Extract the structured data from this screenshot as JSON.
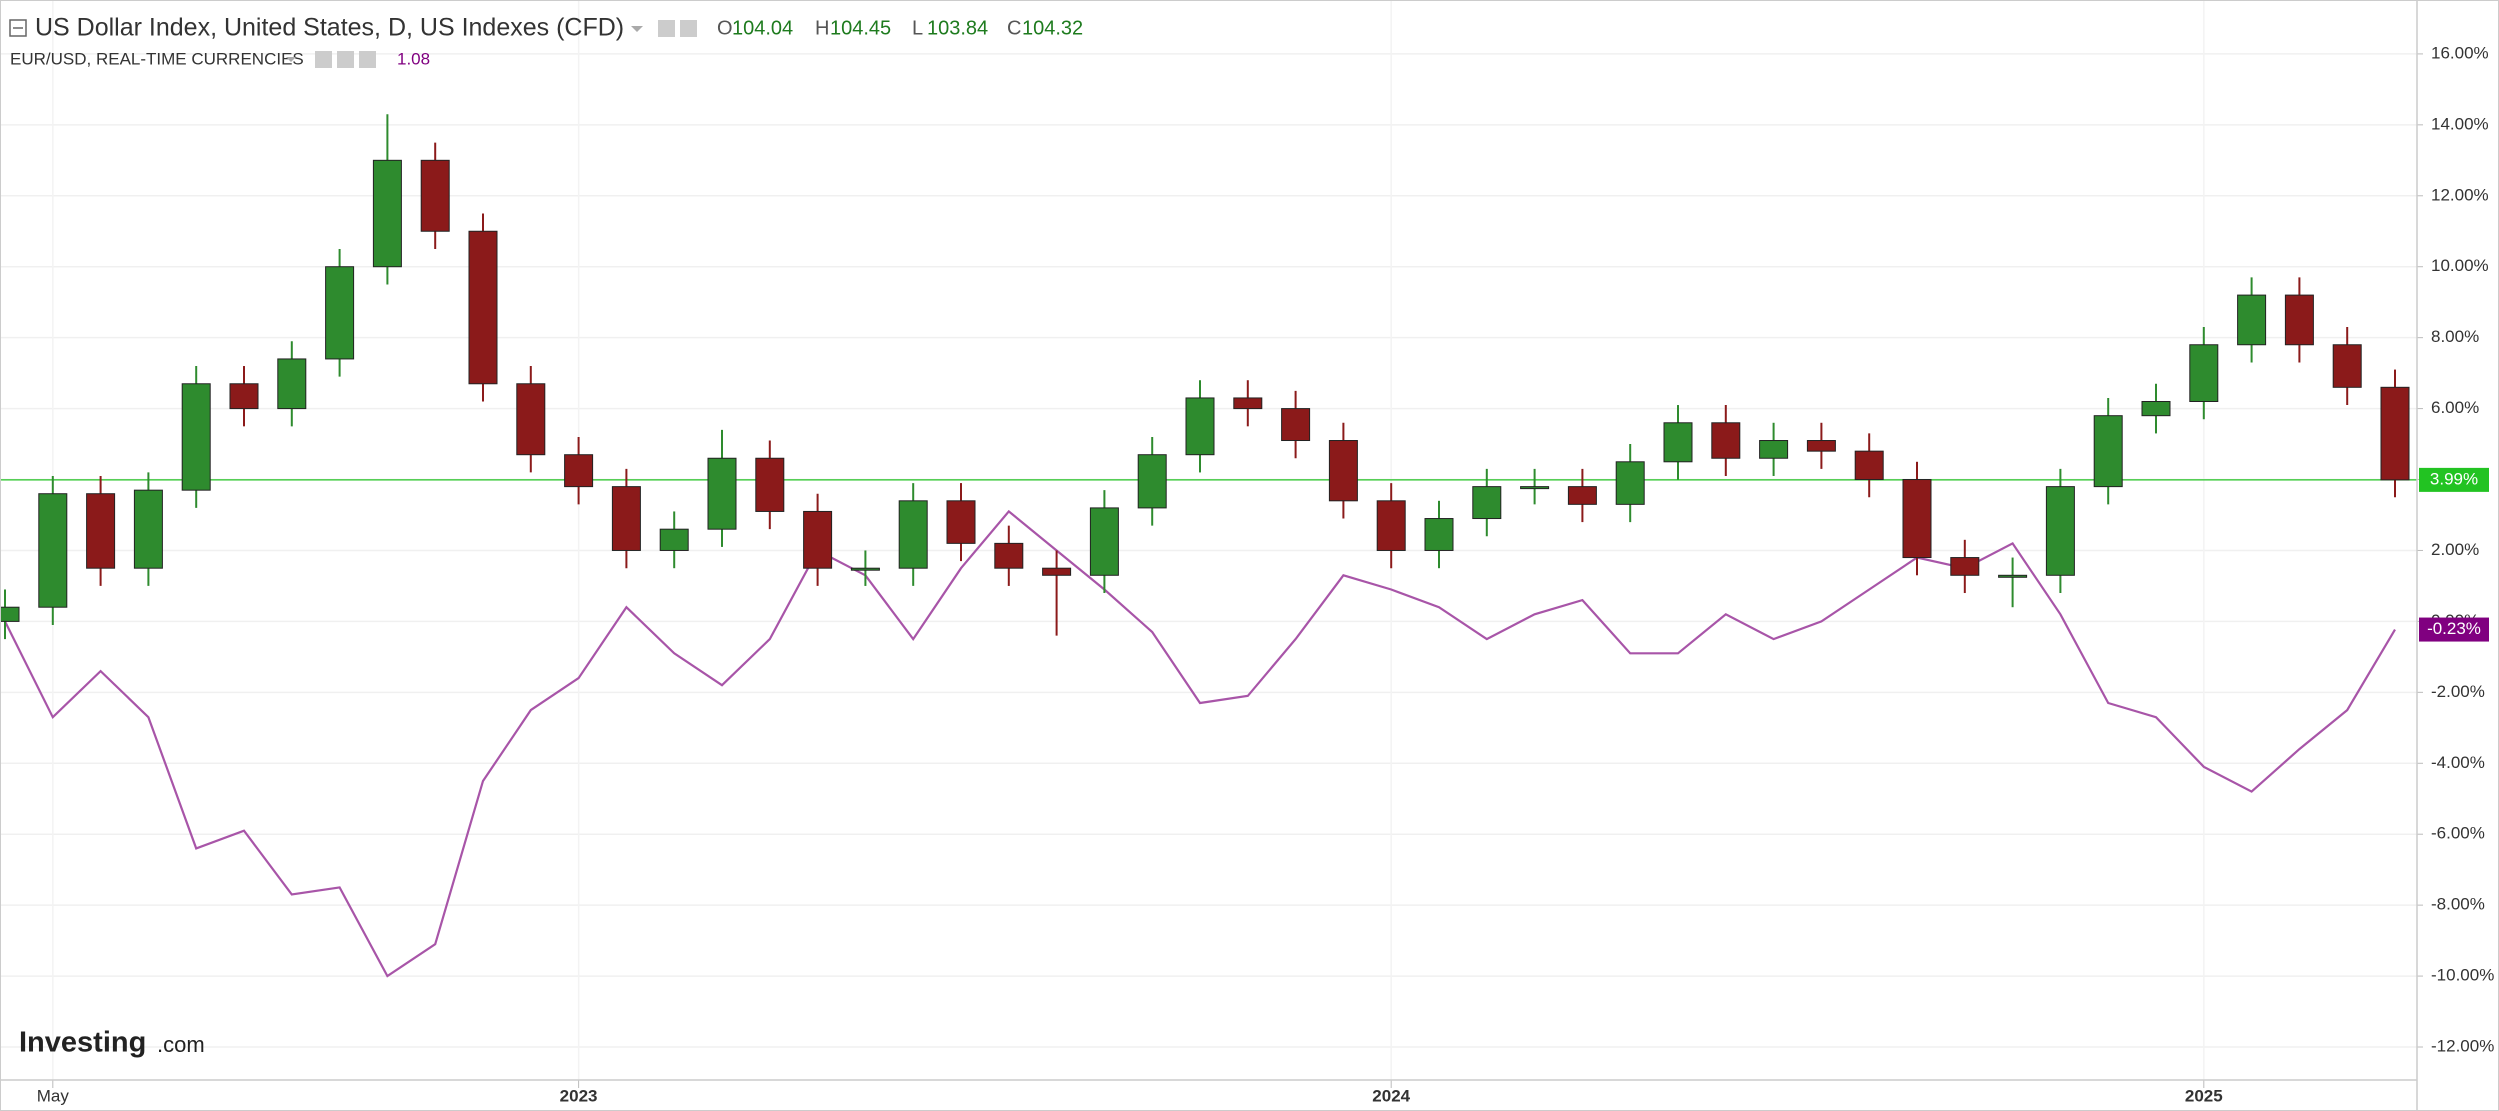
{
  "chart_data": {
    "type": "candlestick",
    "title": "US Dollar Index, United States, D, US Indexes (CFD)",
    "ohlc": [
      {
        "label": "O",
        "value": 104.04
      },
      {
        "label": "H",
        "value": 104.45
      },
      {
        "label": "L",
        "value": 103.84
      },
      {
        "label": "C",
        "value": 104.32
      }
    ],
    "categories": [
      null,
      "May",
      null,
      null,
      null,
      null,
      null,
      null,
      null,
      null,
      null,
      null,
      "2023",
      null,
      null,
      null,
      null,
      null,
      null,
      null,
      null,
      null,
      null,
      null,
      null,
      null,
      null,
      null,
      null,
      "2024",
      null,
      null,
      null,
      null,
      null,
      null,
      null,
      null,
      null,
      null,
      null,
      null,
      null,
      null,
      null,
      null,
      "2025",
      null,
      null,
      null,
      null
    ],
    "ylim": [
      -12.93,
      17.52
    ],
    "yticks": [
      {
        "value": -12,
        "label": "-12.00%"
      },
      {
        "value": -10,
        "label": "-10.00%"
      },
      {
        "value": -8,
        "label": "-8.00%"
      },
      {
        "value": -6,
        "label": "-6.00%"
      },
      {
        "value": -4,
        "label": "-4.00%"
      },
      {
        "value": -2,
        "label": "-2.00%"
      },
      {
        "value": 0,
        "label": "0.00%"
      },
      {
        "value": 2,
        "label": "2.00%"
      },
      {
        "value": 4,
        "label": "4.00%"
      },
      {
        "value": 6,
        "label": "6.00%"
      },
      {
        "value": 8,
        "label": "8.00%"
      },
      {
        "value": 10,
        "label": "10.00%"
      },
      {
        "value": 12,
        "label": "12.00%"
      },
      {
        "value": 14,
        "label": "14.00%"
      },
      {
        "value": 16,
        "label": "16.00%"
      }
    ],
    "grid": true,
    "series": [
      {
        "type": "candlestick",
        "up_color": "#2e8b2e",
        "down_color": "#8b1a1a",
        "open": [
          0.0,
          0.4,
          3.6,
          1.5,
          3.7,
          6.7,
          6.0,
          7.4,
          10.0,
          13.0,
          11.0,
          6.7,
          4.7,
          3.8,
          2.0,
          2.6,
          4.6,
          3.1,
          1.5,
          1.5,
          3.4,
          2.2,
          1.5,
          1.3,
          3.2,
          4.7,
          6.3,
          6.0,
          5.1,
          3.4,
          2.0,
          2.9,
          3.8,
          3.8,
          3.3,
          4.5,
          5.6,
          4.6,
          5.1,
          4.8,
          4.0,
          1.8,
          1.3,
          1.3,
          3.8,
          5.8,
          6.2,
          7.8,
          9.2,
          7.8,
          6.6
        ],
        "high": [
          0.9,
          4.1,
          4.1,
          4.2,
          7.2,
          7.2,
          7.9,
          10.5,
          14.3,
          13.5,
          11.5,
          7.2,
          5.2,
          4.3,
          3.1,
          5.4,
          5.1,
          3.6,
          2.0,
          3.9,
          3.9,
          2.7,
          2.0,
          3.7,
          5.2,
          6.8,
          6.8,
          6.5,
          5.6,
          3.9,
          3.4,
          4.3,
          4.3,
          4.3,
          5.0,
          6.1,
          6.1,
          5.6,
          5.6,
          5.3,
          4.5,
          2.3,
          1.8,
          4.3,
          6.3,
          6.7,
          8.3,
          9.7,
          9.7,
          8.3,
          7.1
        ],
        "low": [
          -0.5,
          -0.1,
          1.0,
          1.0,
          3.2,
          5.5,
          5.5,
          6.9,
          9.5,
          10.5,
          6.2,
          4.2,
          3.3,
          1.5,
          1.5,
          2.1,
          2.6,
          1.0,
          1.0,
          1.0,
          1.7,
          1.0,
          -0.4,
          0.8,
          2.7,
          4.2,
          5.5,
          4.6,
          2.9,
          1.5,
          1.5,
          2.4,
          3.3,
          2.8,
          2.8,
          4.0,
          4.1,
          4.1,
          4.3,
          3.5,
          1.3,
          0.8,
          0.4,
          0.8,
          3.3,
          5.3,
          5.7,
          7.3,
          7.3,
          6.1,
          3.5
        ],
        "close": [
          0.4,
          3.6,
          1.5,
          3.7,
          6.7,
          6.0,
          7.4,
          10.0,
          13.0,
          11.0,
          6.7,
          4.7,
          3.8,
          2.0,
          2.6,
          4.6,
          3.1,
          1.5,
          1.5,
          3.4,
          2.2,
          1.5,
          1.3,
          3.2,
          4.7,
          6.3,
          6.0,
          5.1,
          3.4,
          2.0,
          2.9,
          3.8,
          3.8,
          3.3,
          4.5,
          5.6,
          4.6,
          5.1,
          4.8,
          4.0,
          1.8,
          1.3,
          1.3,
          3.8,
          5.8,
          6.2,
          7.8,
          9.2,
          7.8,
          6.6,
          3.99
        ],
        "price_line": {
          "value": 3.99,
          "label": "3.99%",
          "color": "#22c322"
        }
      },
      {
        "type": "line",
        "name": "EUR/USD, REAL-TIME CURRENCIES",
        "header_value": "1.08",
        "color": "#a855a8",
        "values": [
          0.0,
          -2.7,
          -1.4,
          -2.7,
          -6.4,
          -5.9,
          -7.7,
          -7.5,
          -10.0,
          -9.1,
          -4.5,
          -2.5,
          -1.6,
          0.4,
          -0.9,
          -1.8,
          -0.5,
          2.0,
          1.3,
          -0.5,
          1.5,
          3.1,
          2.0,
          0.9,
          -0.3,
          -2.3,
          -2.1,
          -0.5,
          1.3,
          0.9,
          0.4,
          -0.5,
          0.2,
          0.6,
          -0.9,
          -0.9,
          0.2,
          -0.5,
          0.0,
          0.9,
          1.8,
          1.5,
          2.2,
          0.2,
          -2.3,
          -2.7,
          -4.1,
          -4.8,
          -3.6,
          -2.5,
          -0.23
        ],
        "last_label": {
          "value": -0.23,
          "label": "-0.23%"
        }
      }
    ]
  },
  "logo": {
    "name": "Investing",
    "suffix": ".com"
  }
}
